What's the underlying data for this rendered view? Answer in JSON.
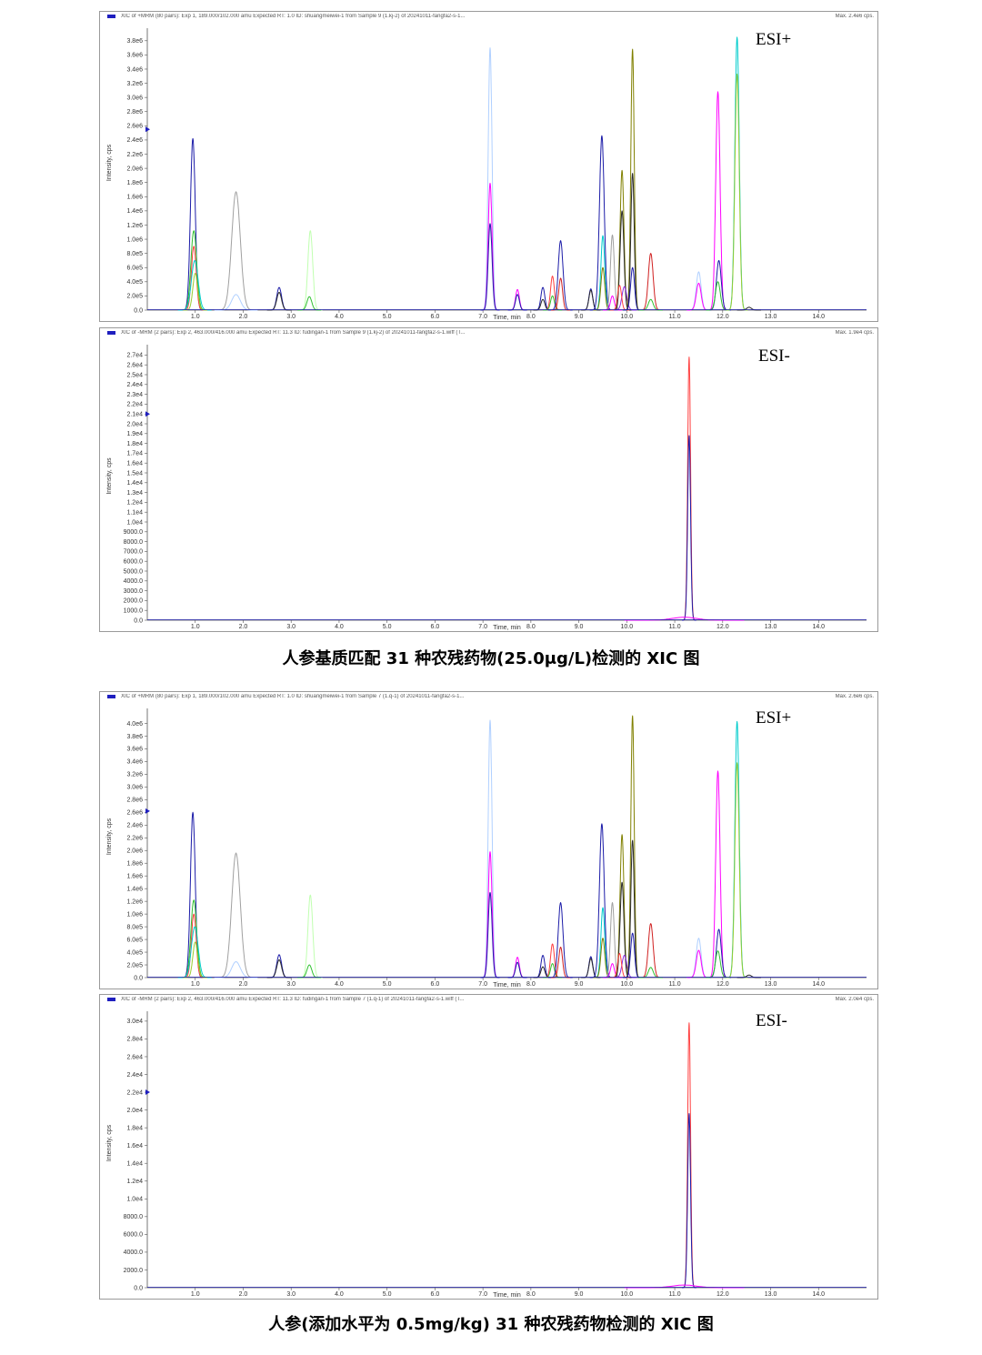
{
  "captions": {
    "first": "人参基质匹配 31 种农残药物(25.0μg/L)检测的 XIC 图",
    "second": "人参(添加水平为 0.5mg/kg) 31 种农残药物检测的 XIC 图"
  },
  "series_colors": [
    "#1c1ca8",
    "#ff00ff",
    "#9acd32",
    "#00cccc",
    "#ff4040",
    "#808000",
    "#a0a0a0",
    "#30c030",
    "#b0d0ff",
    "#2a2a2a",
    "#d02020",
    "#8a2be2",
    "#40e0d0",
    "#c0ffb0"
  ],
  "chart_data": [
    {
      "type": "line",
      "header": "XIC of +MRM (80 pairs): Exp 1, 189.000/102.000 amu Expected RT: 1.0 ID: shuangmeiwei-1 from Sample 9 (1.kj-2) of 20241011-fangfa2-s-1...",
      "max_label": "Max. 2.4e6 cps.",
      "mode_label": "ESI+",
      "xlabel": "Time, min",
      "ylabel": "Intensity, cps",
      "xlim": [
        0,
        15
      ],
      "ylim": [
        0,
        3900000.0
      ],
      "x_ticks": [
        1,
        2,
        3,
        4,
        5,
        6,
        7,
        8,
        9,
        10,
        11,
        12,
        13,
        14
      ],
      "x_tick_labels": [
        "1.0",
        "2.0",
        "3.0",
        "4.0",
        "5.0",
        "6.0",
        "7.0",
        "8.0",
        "9.0",
        "10.0",
        "11.0",
        "12.0",
        "13.0",
        "14.0"
      ],
      "y_ticks": [
        0,
        200000,
        400000,
        600000,
        800000,
        1000000,
        1200000,
        1400000,
        1600000,
        1800000,
        2000000,
        2200000,
        2400000,
        2600000,
        2800000,
        3000000,
        3200000,
        3400000,
        3600000,
        3800000
      ],
      "y_tick_labels": [
        "0.0",
        "2.0e5",
        "4.0e5",
        "6.0e5",
        "8.0e5",
        "1.0e6",
        "1.2e6",
        "1.4e6",
        "1.6e6",
        "1.8e6",
        "2.0e6",
        "2.2e6",
        "2.4e6",
        "2.6e6",
        "2.8e6",
        "3.0e6",
        "3.2e6",
        "3.4e6",
        "3.6e6",
        "3.8e6"
      ],
      "marker_y": 2550000.0,
      "peaks": [
        {
          "rt": 0.95,
          "h": 2420000,
          "w": 0.05,
          "c": 0
        },
        {
          "rt": 0.97,
          "h": 1120000,
          "w": 0.06,
          "c": 7
        },
        {
          "rt": 0.97,
          "h": 900000,
          "w": 0.05,
          "c": 4
        },
        {
          "rt": 0.99,
          "h": 700000,
          "w": 0.07,
          "c": 3
        },
        {
          "rt": 1.0,
          "h": 520000,
          "w": 0.05,
          "c": 2
        },
        {
          "rt": 1.85,
          "h": 1670000,
          "w": 0.09,
          "c": 6
        },
        {
          "rt": 1.85,
          "h": 220000,
          "w": 0.09,
          "c": 8
        },
        {
          "rt": 2.75,
          "h": 320000,
          "w": 0.05,
          "c": 0
        },
        {
          "rt": 2.75,
          "h": 250000,
          "w": 0.05,
          "c": 9
        },
        {
          "rt": 3.4,
          "h": 1120000,
          "w": 0.05,
          "c": 13
        },
        {
          "rt": 3.38,
          "h": 190000,
          "w": 0.05,
          "c": 7
        },
        {
          "rt": 7.15,
          "h": 3700000,
          "w": 0.04,
          "c": 8
        },
        {
          "rt": 7.15,
          "h": 1790000,
          "w": 0.04,
          "c": 1
        },
        {
          "rt": 7.15,
          "h": 1220000,
          "w": 0.04,
          "c": 0
        },
        {
          "rt": 7.72,
          "h": 290000,
          "w": 0.04,
          "c": 1
        },
        {
          "rt": 7.72,
          "h": 220000,
          "w": 0.04,
          "c": 0
        },
        {
          "rt": 8.25,
          "h": 320000,
          "w": 0.04,
          "c": 0
        },
        {
          "rt": 8.25,
          "h": 150000,
          "w": 0.04,
          "c": 9
        },
        {
          "rt": 8.45,
          "h": 480000,
          "w": 0.04,
          "c": 4
        },
        {
          "rt": 8.45,
          "h": 200000,
          "w": 0.04,
          "c": 7
        },
        {
          "rt": 8.62,
          "h": 980000,
          "w": 0.05,
          "c": 0
        },
        {
          "rt": 8.62,
          "h": 450000,
          "w": 0.04,
          "c": 10
        },
        {
          "rt": 9.25,
          "h": 300000,
          "w": 0.04,
          "c": 0
        },
        {
          "rt": 9.25,
          "h": 280000,
          "w": 0.04,
          "c": 9
        },
        {
          "rt": 9.48,
          "h": 2460000,
          "w": 0.05,
          "c": 0
        },
        {
          "rt": 9.5,
          "h": 1050000,
          "w": 0.04,
          "c": 3
        },
        {
          "rt": 9.5,
          "h": 600000,
          "w": 0.04,
          "c": 5
        },
        {
          "rt": 9.7,
          "h": 1060000,
          "w": 0.04,
          "c": 6
        },
        {
          "rt": 9.7,
          "h": 200000,
          "w": 0.04,
          "c": 1
        },
        {
          "rt": 9.9,
          "h": 1970000,
          "w": 0.04,
          "c": 5
        },
        {
          "rt": 9.9,
          "h": 1400000,
          "w": 0.04,
          "c": 9
        },
        {
          "rt": 9.95,
          "h": 330000,
          "w": 0.05,
          "c": 11
        },
        {
          "rt": 9.85,
          "h": 350000,
          "w": 0.04,
          "c": 4
        },
        {
          "rt": 10.12,
          "h": 3680000,
          "w": 0.035,
          "c": 5
        },
        {
          "rt": 10.12,
          "h": 1930000,
          "w": 0.035,
          "c": 9
        },
        {
          "rt": 10.12,
          "h": 600000,
          "w": 0.04,
          "c": 0
        },
        {
          "rt": 10.5,
          "h": 800000,
          "w": 0.05,
          "c": 10
        },
        {
          "rt": 10.5,
          "h": 150000,
          "w": 0.05,
          "c": 7
        },
        {
          "rt": 11.5,
          "h": 540000,
          "w": 0.05,
          "c": 8
        },
        {
          "rt": 11.5,
          "h": 380000,
          "w": 0.05,
          "c": 1
        },
        {
          "rt": 11.9,
          "h": 3080000,
          "w": 0.045,
          "c": 1
        },
        {
          "rt": 11.92,
          "h": 700000,
          "w": 0.05,
          "c": 0
        },
        {
          "rt": 11.9,
          "h": 400000,
          "w": 0.05,
          "c": 7
        },
        {
          "rt": 12.3,
          "h": 3850000,
          "w": 0.045,
          "c": 3
        },
        {
          "rt": 12.3,
          "h": 3330000,
          "w": 0.045,
          "c": 2
        },
        {
          "rt": 12.55,
          "h": 40000,
          "w": 0.05,
          "c": 9
        }
      ]
    },
    {
      "type": "line",
      "header": "XIC of -MRM (2 pairs): Exp 2, 463.000/416.000 amu Expected RT: 11.3 ID: fudingan-1 from Sample 9 (1.kj-2) of 20241011-fangfa2-s-1.wiff (T...",
      "max_label": "Max. 1.9e4 cps.",
      "mode_label": "ESI-",
      "xlabel": "Time, min",
      "ylabel": "Intensity, cps",
      "xlim": [
        0,
        15
      ],
      "ylim": [
        0,
        27500
      ],
      "x_ticks": [
        1,
        2,
        3,
        4,
        5,
        6,
        7,
        8,
        9,
        10,
        11,
        12,
        13,
        14
      ],
      "x_tick_labels": [
        "1.0",
        "2.0",
        "3.0",
        "4.0",
        "5.0",
        "6.0",
        "7.0",
        "8.0",
        "9.0",
        "10.0",
        "11.0",
        "12.0",
        "13.0",
        "14.0"
      ],
      "y_ticks": [
        0,
        1000,
        2000,
        3000,
        4000,
        5000,
        6000,
        7000,
        8000,
        9000,
        10000,
        11000,
        12000,
        13000,
        14000,
        15000,
        16000,
        17000,
        18000,
        19000,
        20000,
        21000,
        22000,
        23000,
        24000,
        25000,
        26000,
        27000
      ],
      "y_tick_labels": [
        "0.0",
        "1000.0",
        "2000.0",
        "3000.0",
        "4000.0",
        "5000.0",
        "6000.0",
        "7000.0",
        "8000.0",
        "9000.0",
        "1.0e4",
        "1.1e4",
        "1.2e4",
        "1.3e4",
        "1.4e4",
        "1.5e4",
        "1.6e4",
        "1.7e4",
        "1.8e4",
        "1.9e4",
        "2.0e4",
        "2.1e4",
        "2.2e4",
        "2.3e4",
        "2.4e4",
        "2.5e4",
        "2.6e4",
        "2.7e4"
      ],
      "marker_y": 21000,
      "peaks": [
        {
          "rt": 11.3,
          "h": 26800,
          "w": 0.03,
          "c": 4
        },
        {
          "rt": 11.3,
          "h": 18800,
          "w": 0.03,
          "c": 0
        },
        {
          "rt": 11.2,
          "h": 300,
          "w": 0.25,
          "c": 1
        }
      ]
    },
    {
      "type": "line",
      "header": "XIC of +MRM (80 pairs): Exp 1, 189.000/102.000 amu Expected RT: 1.0 ID: shuangmeiwei-1 from Sample 7 (1.q-1) of 20241011-fangfa2-s-1...",
      "max_label": "Max. 2.6e6 cps.",
      "mode_label": "ESI+",
      "xlabel": "Time, min",
      "ylabel": "Intensity, cps",
      "xlim": [
        0,
        15
      ],
      "ylim": [
        0,
        4150000.0
      ],
      "x_ticks": [
        1,
        2,
        3,
        4,
        5,
        6,
        7,
        8,
        9,
        10,
        11,
        12,
        13,
        14
      ],
      "x_tick_labels": [
        "1.0",
        "2.0",
        "3.0",
        "4.0",
        "5.0",
        "6.0",
        "7.0",
        "8.0",
        "9.0",
        "10.0",
        "11.0",
        "12.0",
        "13.0",
        "14.0"
      ],
      "y_ticks": [
        0,
        200000,
        400000,
        600000,
        800000,
        1000000,
        1200000,
        1400000,
        1600000,
        1800000,
        2000000,
        2200000,
        2400000,
        2600000,
        2800000,
        3000000,
        3200000,
        3400000,
        3600000,
        3800000,
        4000000
      ],
      "y_tick_labels": [
        "0.0",
        "2.0e5",
        "4.0e5",
        "6.0e5",
        "8.0e5",
        "1.0e6",
        "1.2e6",
        "1.4e6",
        "1.6e6",
        "1.8e6",
        "2.0e6",
        "2.2e6",
        "2.4e6",
        "2.6e6",
        "2.8e6",
        "3.0e6",
        "3.2e6",
        "3.4e6",
        "3.6e6",
        "3.8e6",
        "4.0e6"
      ],
      "marker_y": 2620000.0,
      "peaks": [
        {
          "rt": 0.95,
          "h": 2600000,
          "w": 0.05,
          "c": 0
        },
        {
          "rt": 0.97,
          "h": 1220000,
          "w": 0.06,
          "c": 7
        },
        {
          "rt": 0.97,
          "h": 1000000,
          "w": 0.05,
          "c": 4
        },
        {
          "rt": 0.99,
          "h": 800000,
          "w": 0.07,
          "c": 3
        },
        {
          "rt": 1.0,
          "h": 560000,
          "w": 0.05,
          "c": 2
        },
        {
          "rt": 1.85,
          "h": 1960000,
          "w": 0.09,
          "c": 6
        },
        {
          "rt": 1.85,
          "h": 250000,
          "w": 0.09,
          "c": 8
        },
        {
          "rt": 2.75,
          "h": 360000,
          "w": 0.05,
          "c": 0
        },
        {
          "rt": 2.75,
          "h": 280000,
          "w": 0.05,
          "c": 9
        },
        {
          "rt": 3.4,
          "h": 1300000,
          "w": 0.05,
          "c": 13
        },
        {
          "rt": 3.38,
          "h": 200000,
          "w": 0.05,
          "c": 7
        },
        {
          "rt": 7.15,
          "h": 4050000,
          "w": 0.04,
          "c": 8
        },
        {
          "rt": 7.15,
          "h": 1980000,
          "w": 0.04,
          "c": 1
        },
        {
          "rt": 7.15,
          "h": 1340000,
          "w": 0.04,
          "c": 0
        },
        {
          "rt": 7.72,
          "h": 320000,
          "w": 0.04,
          "c": 1
        },
        {
          "rt": 7.72,
          "h": 240000,
          "w": 0.04,
          "c": 0
        },
        {
          "rt": 8.25,
          "h": 350000,
          "w": 0.04,
          "c": 0
        },
        {
          "rt": 8.25,
          "h": 170000,
          "w": 0.04,
          "c": 9
        },
        {
          "rt": 8.45,
          "h": 530000,
          "w": 0.04,
          "c": 4
        },
        {
          "rt": 8.45,
          "h": 220000,
          "w": 0.04,
          "c": 7
        },
        {
          "rt": 8.62,
          "h": 1180000,
          "w": 0.05,
          "c": 0
        },
        {
          "rt": 8.62,
          "h": 480000,
          "w": 0.04,
          "c": 10
        },
        {
          "rt": 9.25,
          "h": 330000,
          "w": 0.04,
          "c": 0
        },
        {
          "rt": 9.25,
          "h": 300000,
          "w": 0.04,
          "c": 9
        },
        {
          "rt": 9.48,
          "h": 2420000,
          "w": 0.05,
          "c": 0
        },
        {
          "rt": 9.5,
          "h": 1100000,
          "w": 0.04,
          "c": 3
        },
        {
          "rt": 9.5,
          "h": 620000,
          "w": 0.04,
          "c": 5
        },
        {
          "rt": 9.7,
          "h": 1180000,
          "w": 0.04,
          "c": 6
        },
        {
          "rt": 9.7,
          "h": 220000,
          "w": 0.04,
          "c": 1
        },
        {
          "rt": 9.9,
          "h": 2250000,
          "w": 0.04,
          "c": 5
        },
        {
          "rt": 9.9,
          "h": 1500000,
          "w": 0.04,
          "c": 9
        },
        {
          "rt": 9.95,
          "h": 350000,
          "w": 0.05,
          "c": 11
        },
        {
          "rt": 9.85,
          "h": 380000,
          "w": 0.04,
          "c": 4
        },
        {
          "rt": 10.12,
          "h": 4120000,
          "w": 0.035,
          "c": 5
        },
        {
          "rt": 10.12,
          "h": 2160000,
          "w": 0.035,
          "c": 9
        },
        {
          "rt": 10.12,
          "h": 700000,
          "w": 0.04,
          "c": 0
        },
        {
          "rt": 10.5,
          "h": 850000,
          "w": 0.05,
          "c": 10
        },
        {
          "rt": 10.5,
          "h": 160000,
          "w": 0.05,
          "c": 7
        },
        {
          "rt": 11.5,
          "h": 620000,
          "w": 0.05,
          "c": 8
        },
        {
          "rt": 11.5,
          "h": 430000,
          "w": 0.05,
          "c": 1
        },
        {
          "rt": 11.9,
          "h": 3250000,
          "w": 0.045,
          "c": 1
        },
        {
          "rt": 11.92,
          "h": 760000,
          "w": 0.05,
          "c": 0
        },
        {
          "rt": 11.9,
          "h": 420000,
          "w": 0.05,
          "c": 7
        },
        {
          "rt": 12.3,
          "h": 4030000,
          "w": 0.045,
          "c": 3
        },
        {
          "rt": 12.3,
          "h": 3380000,
          "w": 0.045,
          "c": 2
        },
        {
          "rt": 12.55,
          "h": 40000,
          "w": 0.05,
          "c": 9
        }
      ]
    },
    {
      "type": "line",
      "header": "XIC of -MRM (2 pairs): Exp 2, 463.000/416.000 amu Expected RT: 11.3 ID: fudingan-1 from Sample 7 (1.q-1) of 20241011-fangfa2-s-1.wiff (T...",
      "max_label": "Max. 2.0e4 cps.",
      "mode_label": "ESI-",
      "xlabel": "Time, min",
      "ylabel": "Intensity, cps",
      "xlim": [
        0,
        15
      ],
      "ylim": [
        0,
        30500
      ],
      "x_ticks": [
        1,
        2,
        3,
        4,
        5,
        6,
        7,
        8,
        9,
        10,
        11,
        12,
        13,
        14
      ],
      "x_tick_labels": [
        "1.0",
        "2.0",
        "3.0",
        "4.0",
        "5.0",
        "6.0",
        "7.0",
        "8.0",
        "9.0",
        "10.0",
        "11.0",
        "12.0",
        "13.0",
        "14.0"
      ],
      "y_ticks": [
        0,
        2000,
        4000,
        6000,
        8000,
        10000,
        12000,
        14000,
        16000,
        18000,
        20000,
        22000,
        24000,
        26000,
        28000,
        30000
      ],
      "y_tick_labels": [
        "0.0",
        "2000.0",
        "4000.0",
        "6000.0",
        "8000.0",
        "1.0e4",
        "1.2e4",
        "1.4e4",
        "1.6e4",
        "1.8e4",
        "2.0e4",
        "2.2e4",
        "2.4e4",
        "2.6e4",
        "2.8e4",
        "3.0e4"
      ],
      "marker_y": 22000,
      "peaks": [
        {
          "rt": 11.3,
          "h": 29800,
          "w": 0.03,
          "c": 4
        },
        {
          "rt": 11.3,
          "h": 19600,
          "w": 0.03,
          "c": 0
        },
        {
          "rt": 11.2,
          "h": 300,
          "w": 0.25,
          "c": 1
        }
      ]
    }
  ]
}
